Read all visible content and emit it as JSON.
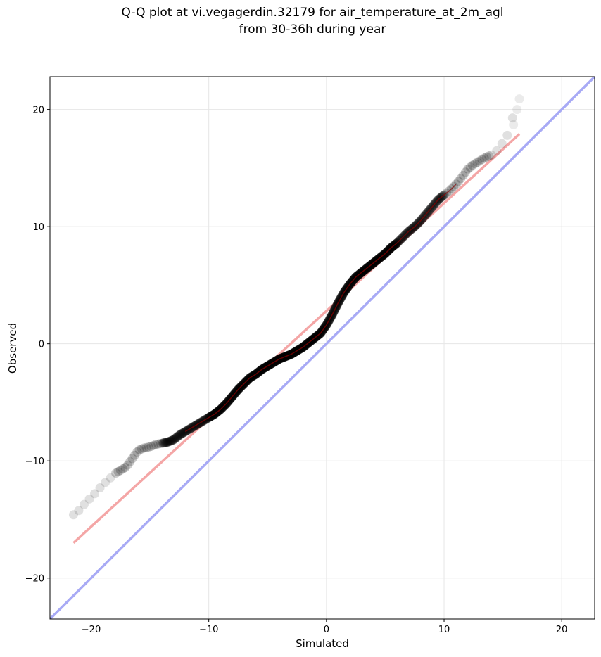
{
  "chart_data": {
    "type": "scatter",
    "title": "Q-Q plot at vi.vegagerdin.32179 for air_temperature_at_2m_agl",
    "subtitle": "from 30-36h during year",
    "xlabel": "Simulated",
    "ylabel": "Observed",
    "xlim": [
      -23.5,
      22.8
    ],
    "ylim": [
      -23.5,
      22.8
    ],
    "xticks": [
      -20,
      -10,
      0,
      10,
      20
    ],
    "yticks": [
      -20,
      -10,
      0,
      10,
      20
    ],
    "xtick_labels": [
      "−20",
      "−10",
      "0",
      "10",
      "20"
    ],
    "ytick_labels": [
      "−20",
      "−10",
      "0",
      "10",
      "20"
    ],
    "grid": true,
    "colors": {
      "points": "#000000",
      "fit_line": "#f4a6a6",
      "identity_line": "#a8aaf5",
      "dense_fit": "#8b0000"
    },
    "quantile_curve": {
      "x": [
        -21.5,
        -21,
        -20.5,
        -20,
        -19.5,
        -19,
        -18.5,
        -18,
        -17.5,
        -17,
        -16.5,
        -16,
        -15.5,
        -15,
        -14.5,
        -14,
        -13.5,
        -13,
        -12.5,
        -12,
        -11.5,
        -11,
        -10.5,
        -10,
        -9.5,
        -9,
        -8.5,
        -8,
        -7.5,
        -7,
        -6.5,
        -6,
        -5.5,
        -5,
        -4.5,
        -4,
        -3.5,
        -3,
        -2.5,
        -2,
        -1.5,
        -1,
        -0.5,
        0,
        0.5,
        1,
        1.5,
        2,
        2.5,
        3,
        3.5,
        4,
        4.5,
        5,
        5.5,
        6,
        6.5,
        7,
        7.5,
        8,
        8.5,
        9,
        9.5,
        10,
        10.5,
        11,
        11.5,
        12,
        12.5,
        13,
        13.5,
        14,
        14.5,
        15,
        15.5,
        16
      ],
      "y": [
        -14.6,
        -14.2,
        -13.6,
        -13.1,
        -12.6,
        -12.0,
        -11.6,
        -11.1,
        -10.8,
        -10.5,
        -9.8,
        -9.1,
        -8.9,
        -8.8,
        -8.6,
        -8.5,
        -8.4,
        -8.2,
        -7.8,
        -7.5,
        -7.2,
        -6.9,
        -6.6,
        -6.3,
        -6.0,
        -5.6,
        -5.1,
        -4.5,
        -3.9,
        -3.4,
        -2.9,
        -2.6,
        -2.2,
        -1.9,
        -1.6,
        -1.3,
        -1.1,
        -0.9,
        -0.6,
        -0.3,
        0.1,
        0.5,
        0.9,
        1.6,
        2.5,
        3.5,
        4.4,
        5.1,
        5.7,
        6.1,
        6.5,
        6.9,
        7.3,
        7.7,
        8.2,
        8.6,
        9.1,
        9.6,
        10.0,
        10.5,
        11.1,
        11.7,
        12.3,
        12.7,
        13.1,
        13.6,
        14.2,
        14.9,
        15.3,
        15.6,
        15.9,
        16.1,
        16.5,
        17.2,
        18.0,
        20.0
      ],
      "extra_points": [
        [
          16.2,
          20.0
        ],
        [
          16.4,
          20.9
        ],
        [
          15.9,
          18.7
        ]
      ]
    },
    "fit_line": {
      "x": [
        -21.5,
        16.4
      ],
      "y": [
        -17.0,
        17.9
      ]
    },
    "identity_line": {
      "x": [
        -23.5,
        22.8
      ],
      "y": [
        -23.5,
        22.8
      ]
    }
  }
}
